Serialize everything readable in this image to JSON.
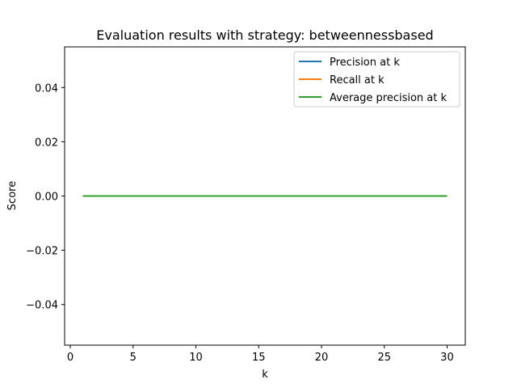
{
  "chart_data": {
    "type": "line",
    "title": "Evaluation results with strategy: betweennessbased",
    "xlabel": "k",
    "ylabel": "Score",
    "xlim": [
      -0.45,
      31.45
    ],
    "ylim": [
      -0.055,
      0.055
    ],
    "xticks": [
      0,
      5,
      10,
      15,
      20,
      25,
      30
    ],
    "xtick_labels": [
      "0",
      "5",
      "10",
      "15",
      "20",
      "25",
      "30"
    ],
    "yticks": [
      -0.04,
      -0.02,
      0.0,
      0.02,
      0.04
    ],
    "ytick_labels": [
      "−0.04",
      "−0.02",
      "0.00",
      "0.02",
      "0.04"
    ],
    "grid": false,
    "legend_position": "top-right",
    "x": [
      1,
      2,
      3,
      4,
      5,
      6,
      7,
      8,
      9,
      10,
      11,
      12,
      13,
      14,
      15,
      16,
      17,
      18,
      19,
      20,
      21,
      22,
      23,
      24,
      25,
      26,
      27,
      28,
      29,
      30
    ],
    "series": [
      {
        "name": "Precision at k",
        "color": "#1f77b4",
        "values": [
          0,
          0,
          0,
          0,
          0,
          0,
          0,
          0,
          0,
          0,
          0,
          0,
          0,
          0,
          0,
          0,
          0,
          0,
          0,
          0,
          0,
          0,
          0,
          0,
          0,
          0,
          0,
          0,
          0,
          0
        ]
      },
      {
        "name": "Recall at k",
        "color": "#ff7f0e",
        "values": [
          0,
          0,
          0,
          0,
          0,
          0,
          0,
          0,
          0,
          0,
          0,
          0,
          0,
          0,
          0,
          0,
          0,
          0,
          0,
          0,
          0,
          0,
          0,
          0,
          0,
          0,
          0,
          0,
          0,
          0
        ]
      },
      {
        "name": "Average precision at k",
        "color": "#2ca02c",
        "values": [
          0,
          0,
          0,
          0,
          0,
          0,
          0,
          0,
          0,
          0,
          0,
          0,
          0,
          0,
          0,
          0,
          0,
          0,
          0,
          0,
          0,
          0,
          0,
          0,
          0,
          0,
          0,
          0,
          0,
          0
        ]
      }
    ]
  }
}
